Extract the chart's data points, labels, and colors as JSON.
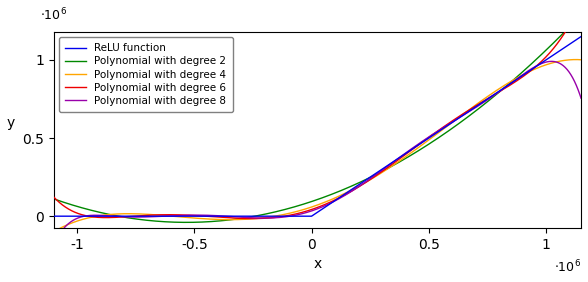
{
  "x_min": -1100000.0,
  "x_max": 1150000.0,
  "y_min": -75000.0,
  "y_max": 1180000.0,
  "xlabel": "x",
  "ylabel": "y",
  "lines": [
    {
      "label": "ReLU function",
      "color": "#0000EE",
      "degree": 0
    },
    {
      "label": "Polynomial with degree 2",
      "color": "#008800",
      "degree": 2
    },
    {
      "label": "Polynomial with degree 4",
      "color": "#FFA500",
      "degree": 4
    },
    {
      "label": "Polynomial with degree 6",
      "color": "#EE0000",
      "degree": 6
    },
    {
      "label": "Polynomial with degree 8",
      "color": "#9900AA",
      "degree": 8
    }
  ],
  "n_points": 2000,
  "figsize": [
    5.88,
    2.82
  ],
  "dpi": 100,
  "x_ticks": [
    -1000000.0,
    -500000.0,
    0.0,
    500000.0,
    1000000.0
  ],
  "x_tick_labels": [
    "-1",
    "-0.5",
    "0",
    "0.5",
    "1"
  ],
  "y_ticks": [
    0.0,
    500000.0,
    1000000.0
  ],
  "y_tick_labels": [
    "0",
    "0.5",
    "1"
  ]
}
